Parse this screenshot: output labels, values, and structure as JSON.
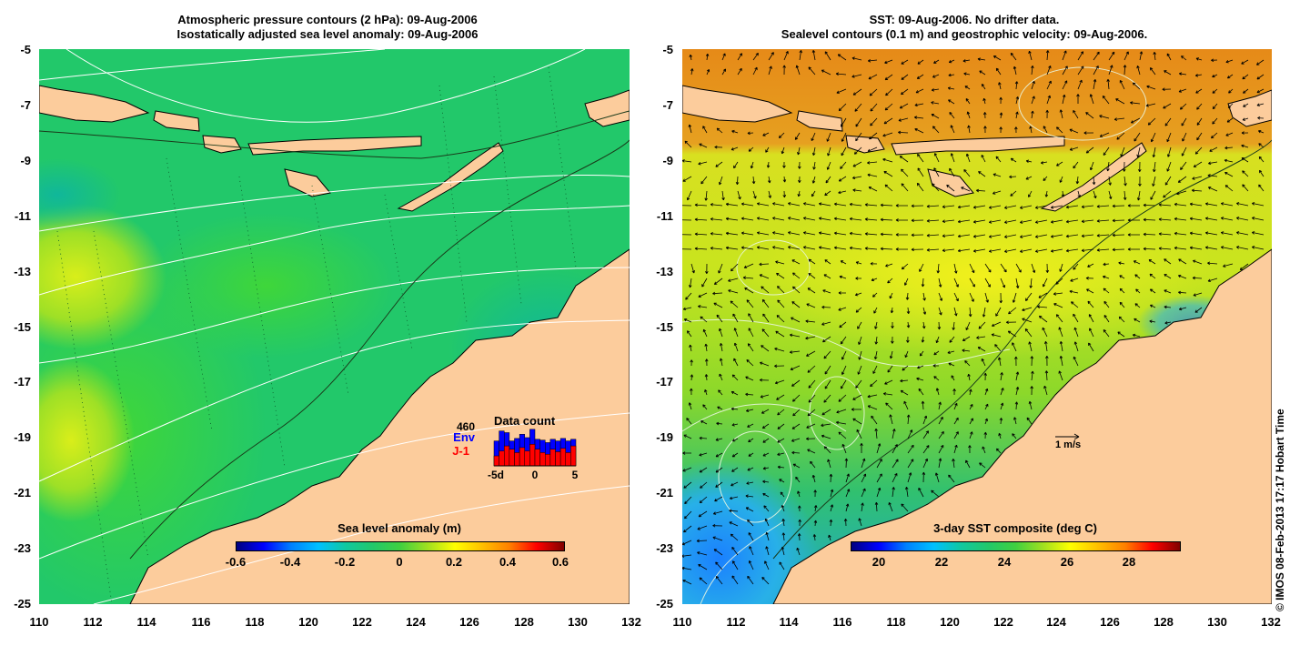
{
  "left_panel": {
    "title_line1": "Atmospheric pressure contours (2 hPa): 09-Aug-2006",
    "title_line2": "Isostatically adjusted sea level anomaly: 09-Aug-2006",
    "colorbar": {
      "label": "Sea level anomaly (m)",
      "ticks": [
        "-0.6",
        "-0.4",
        "-0.2",
        "0",
        "0.2",
        "0.4",
        "0.6"
      ]
    },
    "inset": {
      "title": "Data count",
      "max_label": "460",
      "env_label": "Env",
      "j1_label": "J-1",
      "x_ticks": [
        "-5d",
        "0",
        "5"
      ],
      "env_counts": [
        300,
        420,
        400,
        300,
        330,
        380,
        340,
        440,
        320,
        310,
        280,
        320,
        300,
        330,
        300,
        320
      ],
      "j1_counts": [
        120,
        180,
        240,
        200,
        160,
        220,
        180,
        260,
        200,
        160,
        140,
        200,
        170,
        210,
        160,
        240
      ],
      "colors": {
        "env": "#0000ff",
        "j1": "#ff0000"
      }
    }
  },
  "right_panel": {
    "title_line1": "SST: 09-Aug-2006. No drifter data.",
    "title_line2": "Sealevel contours (0.1 m) and geostrophic velocity: 09-Aug-2006.",
    "colorbar": {
      "label": "3-day SST composite (deg C)",
      "ticks": [
        "20",
        "22",
        "24",
        "26",
        "28"
      ]
    },
    "scale_label": "1 m/s"
  },
  "axes": {
    "longitude_ticks": [
      "110",
      "112",
      "114",
      "116",
      "118",
      "120",
      "122",
      "124",
      "126",
      "128",
      "130",
      "132"
    ],
    "latitude_ticks": [
      "-5",
      "-7",
      "-9",
      "-11",
      "-13",
      "-15",
      "-17",
      "-19",
      "-21",
      "-23",
      "-25"
    ]
  },
  "credit": "© IMOS 08-Feb-2013 17:17 Hobart Time",
  "colors": {
    "land": "#fccc9c",
    "sla_ocean": "#22c86a",
    "sst_warm": "#e68a18",
    "sst_mid": "#aee020",
    "sst_cool": "#28a8e8"
  }
}
